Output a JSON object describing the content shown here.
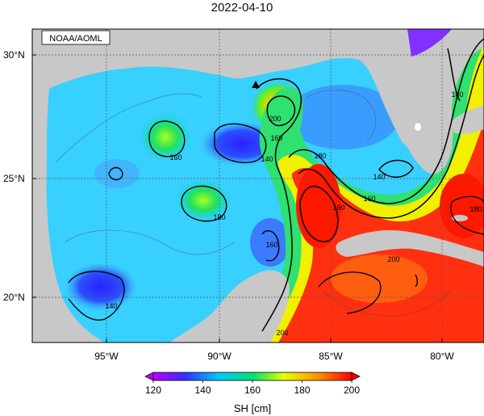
{
  "title": "2022-04-10",
  "credit": "NOAA/AOML",
  "axes": {
    "lat_labels": [
      "30°N",
      "25°N",
      "20°N"
    ],
    "lon_labels": [
      "95°W",
      "90°W",
      "85°W",
      "80°W"
    ]
  },
  "contour_labels": [
    "140",
    "160",
    "180",
    "200",
    "160",
    "160",
    "180",
    "160",
    "140",
    "180",
    "200",
    "200",
    "160",
    "140",
    "180"
  ],
  "colorbar": {
    "label": "SH [cm]",
    "ticks": [
      "120",
      "140",
      "160",
      "180",
      "200"
    ],
    "range": [
      120,
      200
    ],
    "colors": [
      "#c000ff",
      "#2020ff",
      "#00d0ff",
      "#00e060",
      "#ffff00",
      "#ff8000",
      "#ff0000"
    ]
  },
  "colors": {
    "land": "#c8c8c8",
    "contour": "#000000"
  }
}
